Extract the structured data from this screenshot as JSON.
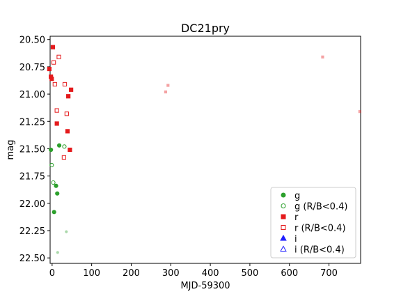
{
  "chart_data": {
    "type": "scatter",
    "title": "DC21pry",
    "xlabel": "MJD-59300",
    "ylabel": "mag",
    "xlim": [
      -5,
      780
    ],
    "ylim": [
      22.55,
      20.47
    ],
    "y_inverted": true,
    "grid": false,
    "legend_position": "lower-right",
    "xticks": [
      0,
      100,
      200,
      300,
      400,
      500,
      600,
      700
    ],
    "yticks": [
      20.5,
      20.75,
      21.0,
      21.25,
      21.5,
      21.75,
      22.0,
      22.25,
      22.5
    ],
    "ytick_labels": [
      "20.50",
      "20.75",
      "21.00",
      "21.25",
      "21.50",
      "21.75",
      "22.00",
      "22.25",
      "22.50"
    ],
    "series": [
      {
        "name": "g",
        "color": "#2ca02c",
        "marker": "circle",
        "filled": true,
        "x": [
          -3,
          5,
          10,
          13,
          18
        ],
        "y": [
          21.51,
          22.08,
          21.84,
          21.91,
          21.47
        ],
        "faint": {
          "x": [
            14
          ],
          "y": [
            22.45
          ]
        }
      },
      {
        "name": "g (R/B<0.4)",
        "color": "#2ca02c",
        "marker": "circle",
        "filled": false,
        "x": [
          -1,
          3,
          31
        ],
        "y": [
          21.65,
          21.81,
          21.48
        ],
        "faint": {
          "x": [
            36
          ],
          "y": [
            22.26
          ]
        }
      },
      {
        "name": "r",
        "color": "#e41a1c",
        "marker": "square",
        "filled": true,
        "x": [
          -7,
          -3,
          -1,
          2,
          12,
          39,
          41,
          45,
          48
        ],
        "y": [
          20.77,
          20.84,
          20.86,
          20.57,
          21.27,
          21.34,
          21.02,
          21.51,
          20.96
        ],
        "faint": {
          "x": [
            293,
            684
          ],
          "y": [
            20.92,
            20.66
          ]
        }
      },
      {
        "name": "r (R/B<0.4)",
        "color": "#e41a1c",
        "marker": "square",
        "filled": false,
        "x": [
          4,
          7,
          12,
          17,
          30,
          32,
          37
        ],
        "y": [
          20.71,
          20.91,
          21.15,
          20.66,
          21.58,
          20.91,
          21.18
        ],
        "faint": {
          "x": [
            287,
            778
          ],
          "y": [
            20.98,
            21.16
          ]
        }
      },
      {
        "name": "i",
        "color": "#1f1fff",
        "marker": "triangle",
        "filled": true,
        "x": [],
        "y": []
      },
      {
        "name": "i (R/B<0.4)",
        "color": "#1f1fff",
        "marker": "triangle",
        "filled": false,
        "x": [],
        "y": []
      }
    ]
  }
}
